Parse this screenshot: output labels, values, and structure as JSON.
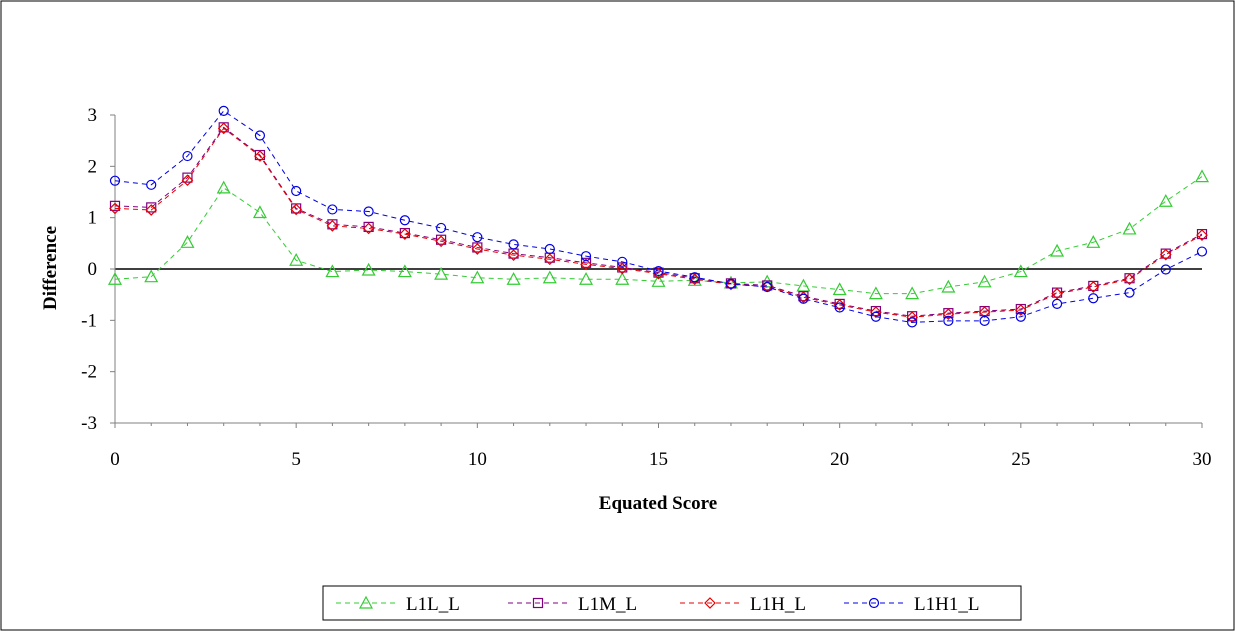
{
  "chart_data": {
    "type": "line",
    "title": "",
    "xlabel": "Equated Score",
    "ylabel": "Difference",
    "xlim": [
      0,
      30
    ],
    "ylim": [
      -3,
      3
    ],
    "x_ticks": [
      "0",
      "5",
      "10",
      "15",
      "20",
      "25",
      "30"
    ],
    "y_ticks": [
      "-3",
      "-2",
      "-1",
      "0",
      "1",
      "2",
      "3"
    ],
    "grid": false,
    "reference_line_y": 0,
    "legend_position": "bottom",
    "x": [
      0,
      1,
      2,
      3,
      4,
      5,
      6,
      7,
      8,
      9,
      10,
      11,
      12,
      13,
      14,
      15,
      16,
      17,
      18,
      19,
      20,
      21,
      22,
      23,
      24,
      25,
      26,
      27,
      28,
      29,
      30
    ],
    "series": [
      {
        "name": "L1L_L",
        "color": "#33cc33",
        "marker": "triangle",
        "values": [
          -0.2,
          -0.15,
          0.52,
          1.58,
          1.1,
          0.17,
          -0.05,
          -0.02,
          -0.05,
          -0.1,
          -0.17,
          -0.2,
          -0.17,
          -0.2,
          -0.2,
          -0.24,
          -0.22,
          -0.27,
          -0.25,
          -0.33,
          -0.4,
          -0.48,
          -0.48,
          -0.35,
          -0.25,
          -0.05,
          0.35,
          0.52,
          0.78,
          1.32,
          1.8
        ]
      },
      {
        "name": "L1M_L",
        "color": "#800080",
        "marker": "square",
        "values": [
          1.23,
          1.2,
          1.78,
          2.76,
          2.22,
          1.18,
          0.87,
          0.82,
          0.7,
          0.57,
          0.42,
          0.3,
          0.22,
          0.12,
          0.03,
          -0.07,
          -0.18,
          -0.28,
          -0.32,
          -0.53,
          -0.68,
          -0.82,
          -0.92,
          -0.86,
          -0.82,
          -0.78,
          -0.46,
          -0.33,
          -0.18,
          0.3,
          0.68
        ]
      },
      {
        "name": "L1H_L",
        "color": "#e60000",
        "marker": "diamond",
        "values": [
          1.18,
          1.15,
          1.73,
          2.74,
          2.2,
          1.16,
          0.84,
          0.79,
          0.68,
          0.54,
          0.39,
          0.27,
          0.19,
          0.09,
          0.01,
          -0.09,
          -0.2,
          -0.3,
          -0.34,
          -0.55,
          -0.7,
          -0.84,
          -0.94,
          -0.88,
          -0.84,
          -0.8,
          -0.48,
          -0.35,
          -0.2,
          0.28,
          0.66
        ]
      },
      {
        "name": "L1H1_L",
        "color": "#0000e6",
        "marker": "circle",
        "values": [
          1.72,
          1.64,
          2.2,
          3.08,
          2.6,
          1.52,
          1.16,
          1.12,
          0.95,
          0.8,
          0.62,
          0.48,
          0.39,
          0.25,
          0.14,
          -0.04,
          -0.16,
          -0.29,
          -0.35,
          -0.58,
          -0.75,
          -0.93,
          -1.04,
          -1.01,
          -1.01,
          -0.93,
          -0.68,
          -0.57,
          -0.46,
          -0.01,
          0.34
        ]
      }
    ]
  }
}
